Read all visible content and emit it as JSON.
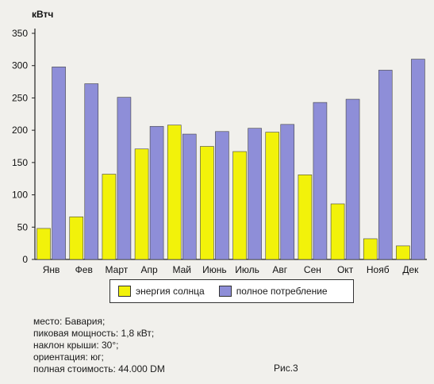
{
  "chart_data": {
    "type": "bar",
    "ylabel": "кВтч",
    "ylim": [
      0,
      350
    ],
    "yticks": [
      0,
      50,
      100,
      150,
      200,
      250,
      300,
      350
    ],
    "grid": false,
    "legend_position": "bottom",
    "categories": [
      "Янв",
      "Фев",
      "Март",
      "Апр",
      "Май",
      "Июнь",
      "Июль",
      "Авг",
      "Сен",
      "Окт",
      "Нояб",
      "Дек"
    ],
    "series": [
      {
        "name": "энергия солнца",
        "color": "#f2f20a",
        "values": [
          48,
          66,
          132,
          171,
          208,
          175,
          167,
          197,
          131,
          86,
          32,
          21
        ]
      },
      {
        "name": "полное потребление",
        "color": "#8e8ed8",
        "values": [
          298,
          272,
          251,
          206,
          194,
          198,
          203,
          209,
          243,
          248,
          293,
          310
        ]
      }
    ]
  },
  "notes": {
    "line1": "место: Бавария;",
    "line2": "пиковая мощность: 1,8 кВт;",
    "line3": "наклон крыши: 30°;",
    "line4": "ориентация: юг;",
    "line5": "полная стоимость: 44.000 DM"
  },
  "figure_label": "Рис.3"
}
